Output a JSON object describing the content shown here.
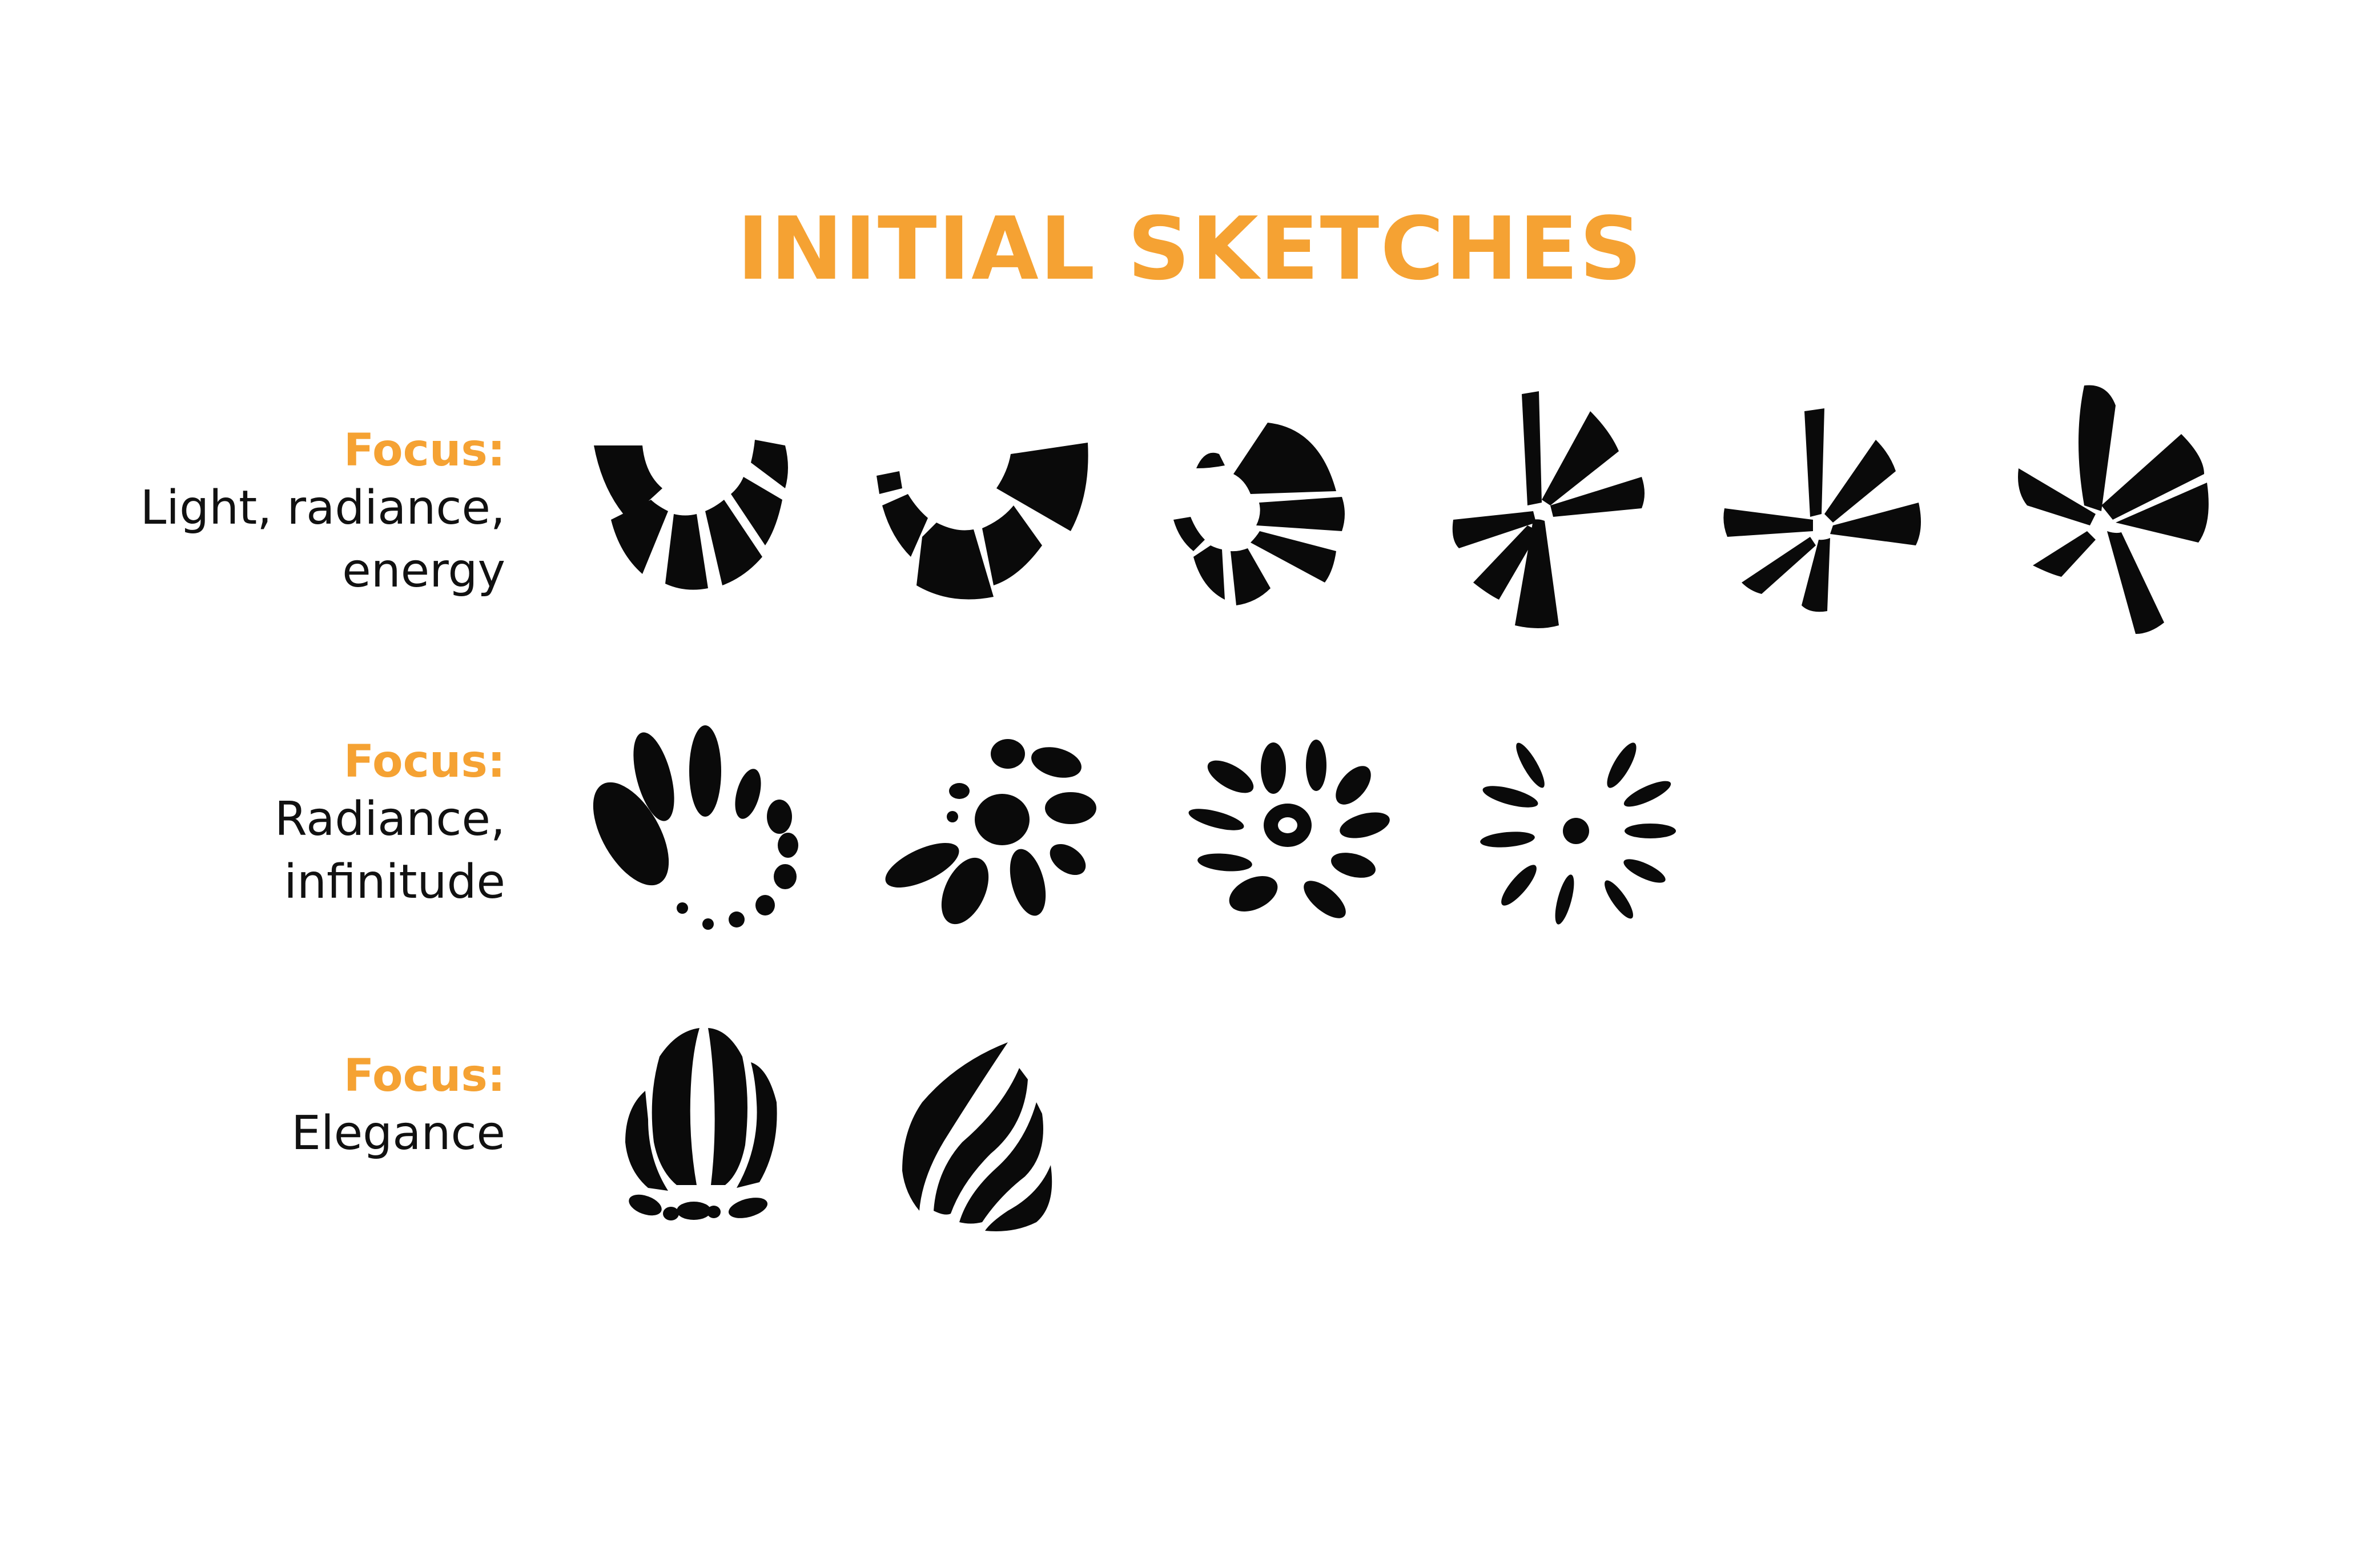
{
  "title": "INITIAL SKETCHES",
  "colors": {
    "accent": "#F5A233",
    "ink": "#0A0A0A",
    "background": "#FFFFFF"
  },
  "rows": [
    {
      "focus_label": "Focus:",
      "description": "Light, radiance,\nenergy"
    },
    {
      "focus_label": "Focus:",
      "description": "Radiance,\ninfinitude"
    },
    {
      "focus_label": "Focus:",
      "description": "Elegance"
    }
  ]
}
